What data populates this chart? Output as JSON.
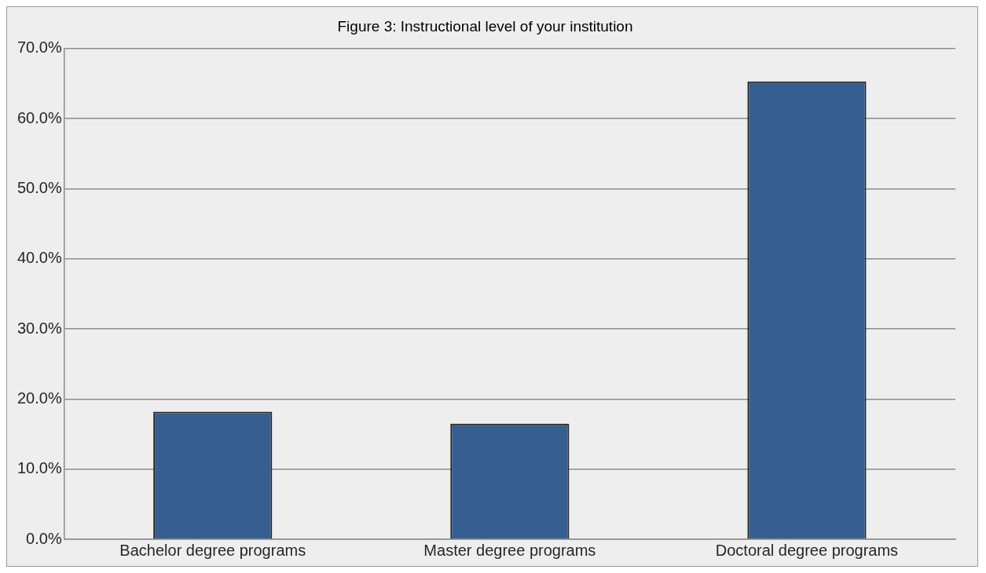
{
  "chart_data": {
    "type": "bar",
    "title": "Figure 3: Instructional level of your institution",
    "categories": [
      "Bachelor degree programs",
      "Master degree programs",
      "Doctoral degree programs"
    ],
    "values": [
      18.2,
      16.5,
      65.3
    ],
    "color": "#365f91",
    "ylim": [
      0,
      70
    ],
    "yticks": [
      {
        "value": 0,
        "label": "0.0%"
      },
      {
        "value": 10,
        "label": "10.0%"
      },
      {
        "value": 20,
        "label": "20.0%"
      },
      {
        "value": 30,
        "label": "30.0%"
      },
      {
        "value": 40,
        "label": "40.0%"
      },
      {
        "value": 50,
        "label": "50.0%"
      },
      {
        "value": 60,
        "label": "60.0%"
      },
      {
        "value": 70,
        "label": "70.0%"
      }
    ],
    "grid": "y",
    "legend": false
  }
}
